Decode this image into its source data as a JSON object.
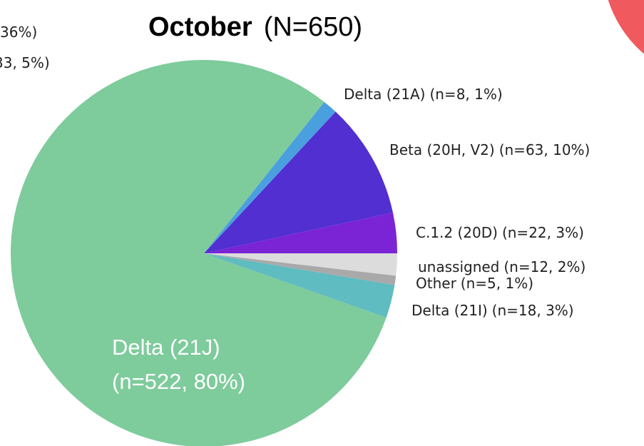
{
  "chart_data": {
    "type": "pie",
    "title": "October",
    "subtitle": "(N=650)",
    "categories": [
      "C.1.2 (20D)",
      "Beta (20H, V2)",
      "Delta (21A)",
      "Delta (21J)",
      "Delta (21I)",
      "Other",
      "unassigned"
    ],
    "values": [
      22,
      63,
      8,
      522,
      18,
      5,
      12
    ],
    "value_labels": [
      "(n=22, 3%)",
      "(n=63, 10%)",
      "(n=8, 1%)",
      "(n=522, 80%)",
      "(n=18, 3%)",
      "(n=5, 1%)",
      "(n=12, 2%)"
    ],
    "colors": [
      "#7a24d6",
      "#512fd0",
      "#4a9fdf",
      "#7ecb9c",
      "#5fbcc0",
      "#a9a9a9",
      "#dcdcdc"
    ],
    "fragments": [
      "36%)",
      "33, 5%)"
    ]
  }
}
